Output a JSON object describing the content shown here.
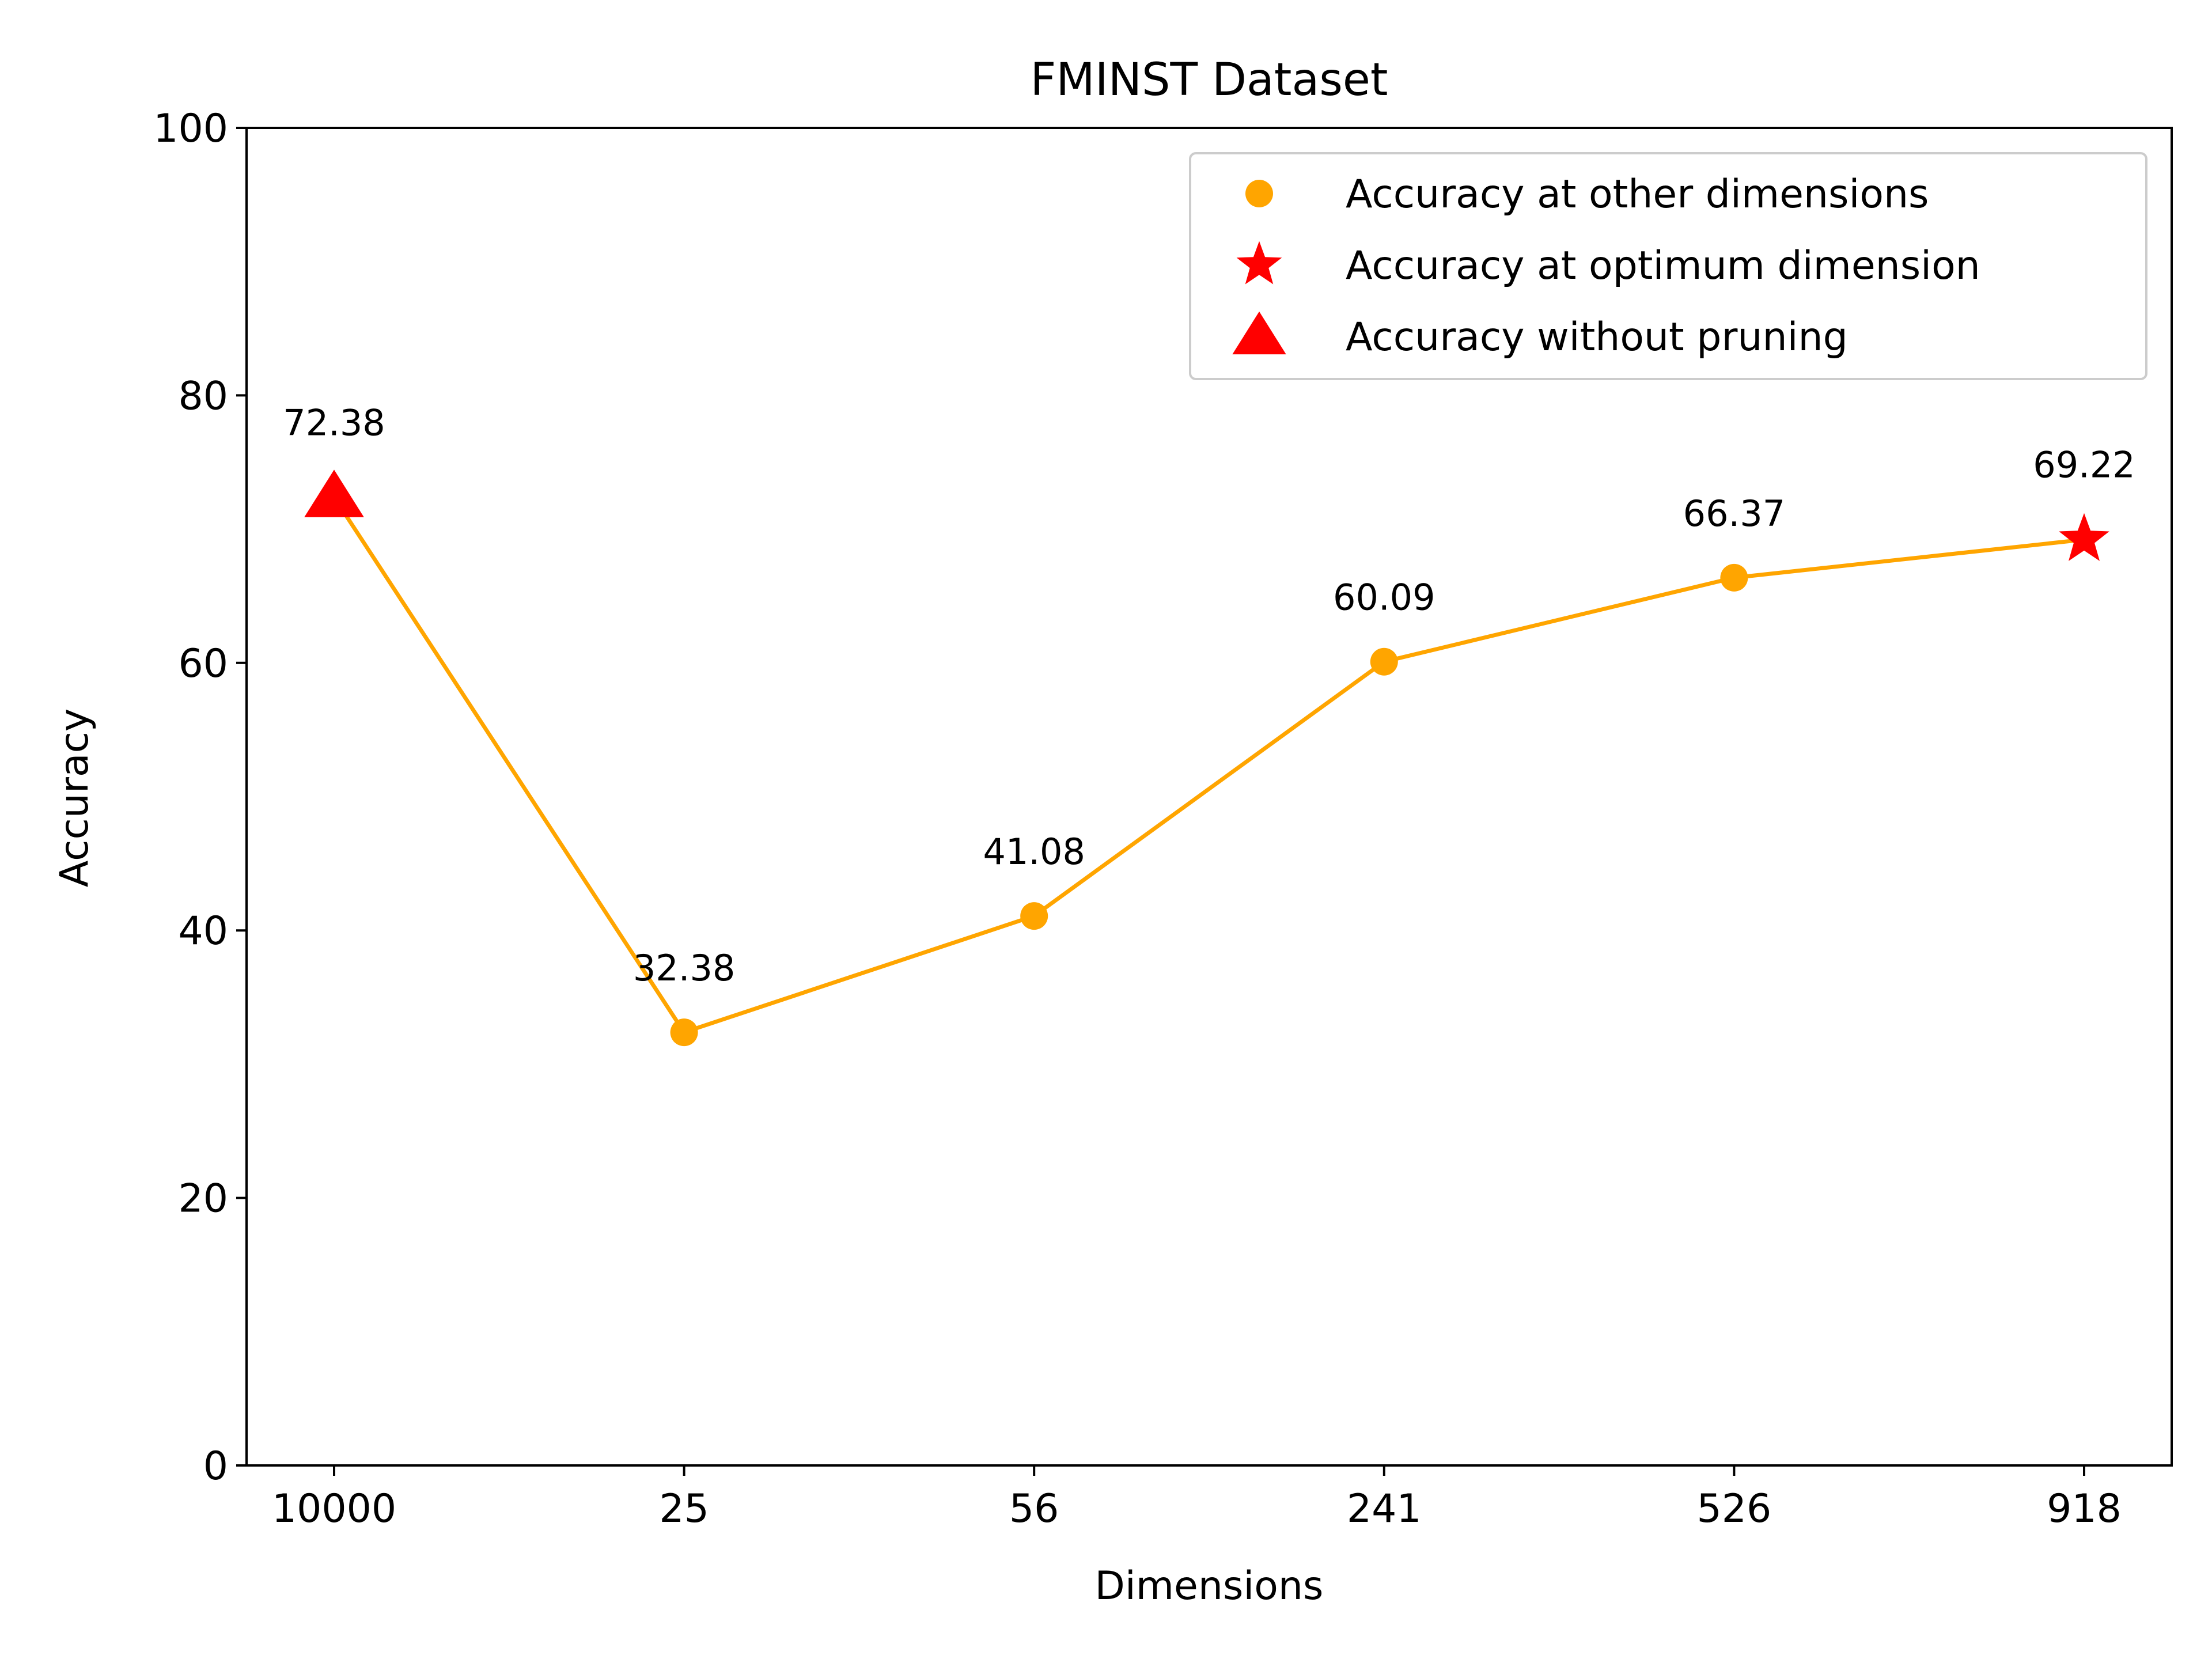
{
  "chart_data": {
    "type": "line",
    "title": "FMINST Dataset",
    "xlabel": "Dimensions",
    "ylabel": "Accuracy",
    "categories": [
      "10000",
      "25",
      "56",
      "241",
      "526",
      "918"
    ],
    "values": [
      72.38,
      32.38,
      41.08,
      60.09,
      66.37,
      69.22
    ],
    "data_labels": [
      "72.38",
      "32.38",
      "41.08",
      "60.09",
      "66.37",
      "69.22"
    ],
    "point_markers": [
      "triangle",
      "circle",
      "circle",
      "circle",
      "circle",
      "star"
    ],
    "ylim": [
      0,
      100
    ],
    "yticks": [
      0,
      20,
      40,
      60,
      80,
      100
    ],
    "grid": false,
    "legend_position": "top-right",
    "legend": [
      {
        "label": "Accuracy at other dimensions",
        "marker": "circle",
        "color": "#FFA500"
      },
      {
        "label": "Accuracy at optimum dimension",
        "marker": "star",
        "color": "#FF0000"
      },
      {
        "label": "Accuracy without pruning",
        "marker": "triangle",
        "color": "#FF0000"
      }
    ],
    "colors": {
      "line": "#FFA500",
      "highlight": "#FF0000",
      "axis": "#000000"
    }
  }
}
